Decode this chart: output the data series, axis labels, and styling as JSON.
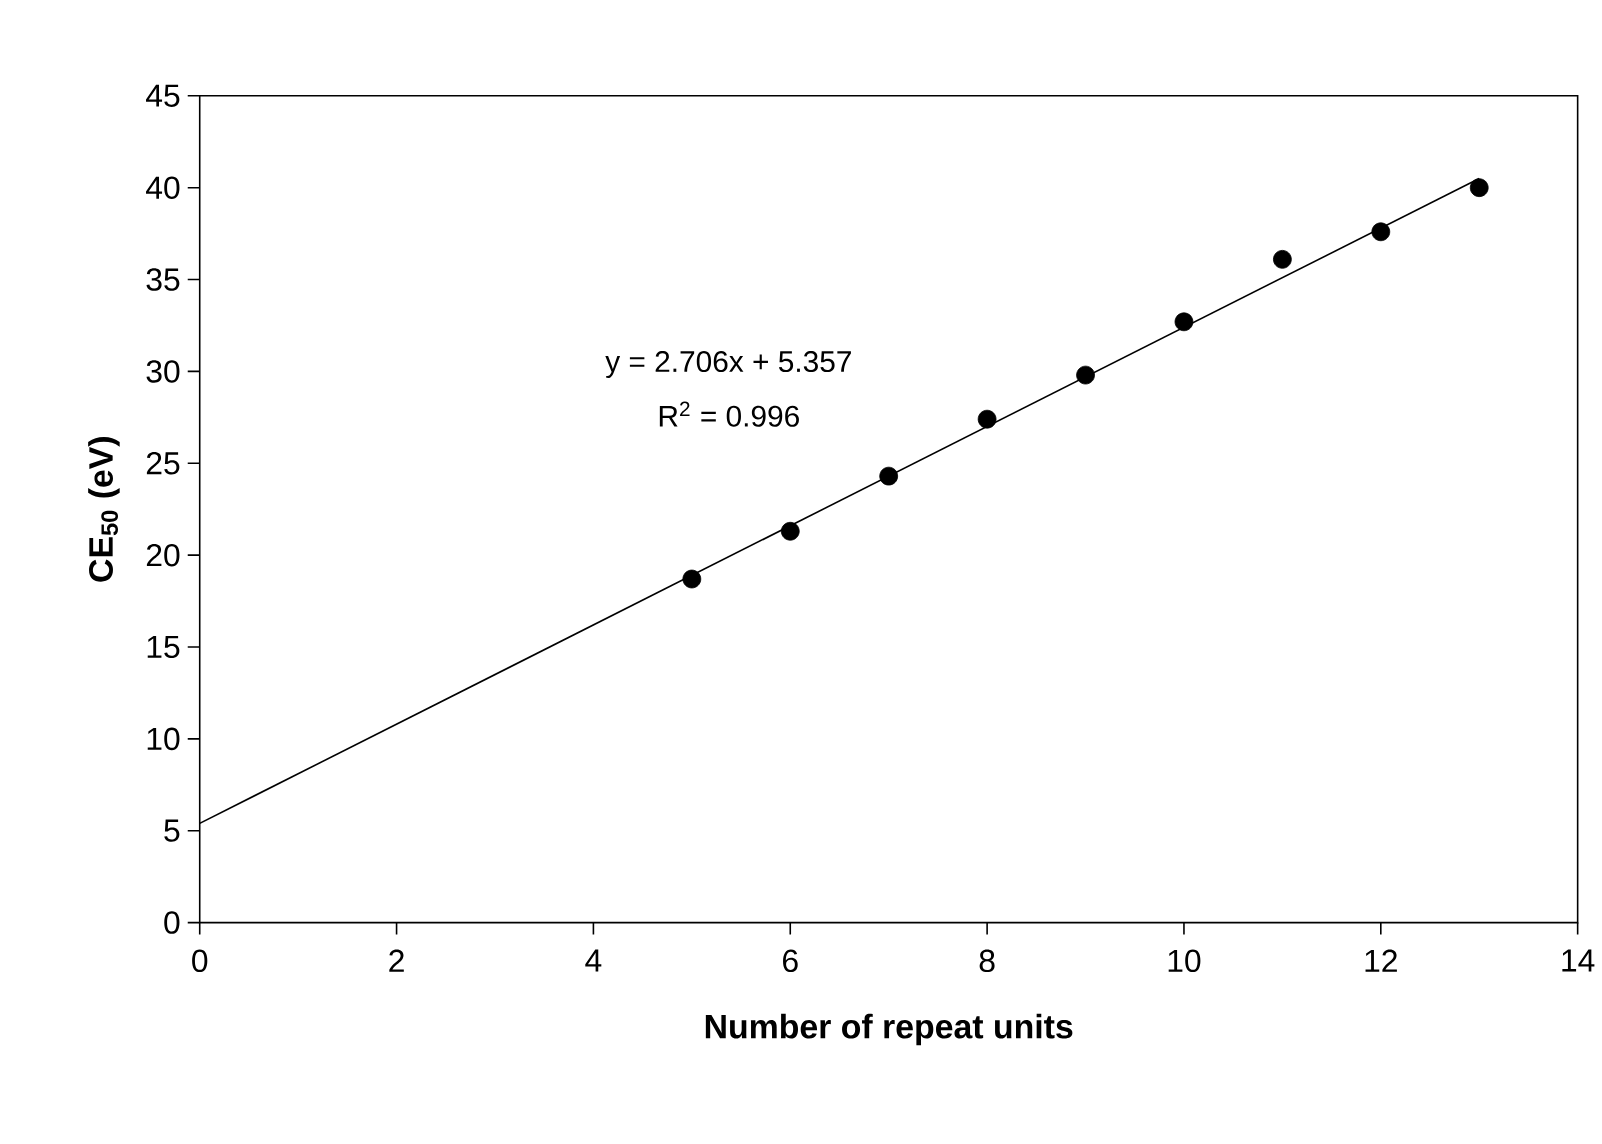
{
  "chart_data": {
    "type": "scatter",
    "xlabel": "Number of repeat units",
    "ylabel": "CE$_{50}$ (eV)",
    "x": [
      5,
      6,
      7,
      8,
      9,
      10,
      11,
      12,
      13
    ],
    "series": [
      {
        "color": "#000000",
        "values": [
          18.7,
          21.3,
          24.3,
          27.4,
          29.8,
          32.7,
          36.1,
          37.6,
          40.0
        ]
      },
      {
        "type": "line",
        "color": "#000000",
        "x": [
          0,
          13
        ],
        "values": [
          5.4,
          40.5
        ],
        "line_style": "solid",
        "marker": "none"
      }
    ],
    "annotations": [
      "y = 2.706x + 5.357",
      "R$^{2}$ = 0.996"
    ],
    "xlim": [
      0,
      14
    ],
    "xticks": [
      0,
      2,
      4,
      6,
      8,
      10,
      12,
      14
    ],
    "ylim": [
      0,
      45
    ],
    "yticks": [
      0,
      5,
      10,
      15,
      20,
      25,
      30,
      35,
      40,
      45
    ],
    "marker": "circle",
    "grid": false
  }
}
